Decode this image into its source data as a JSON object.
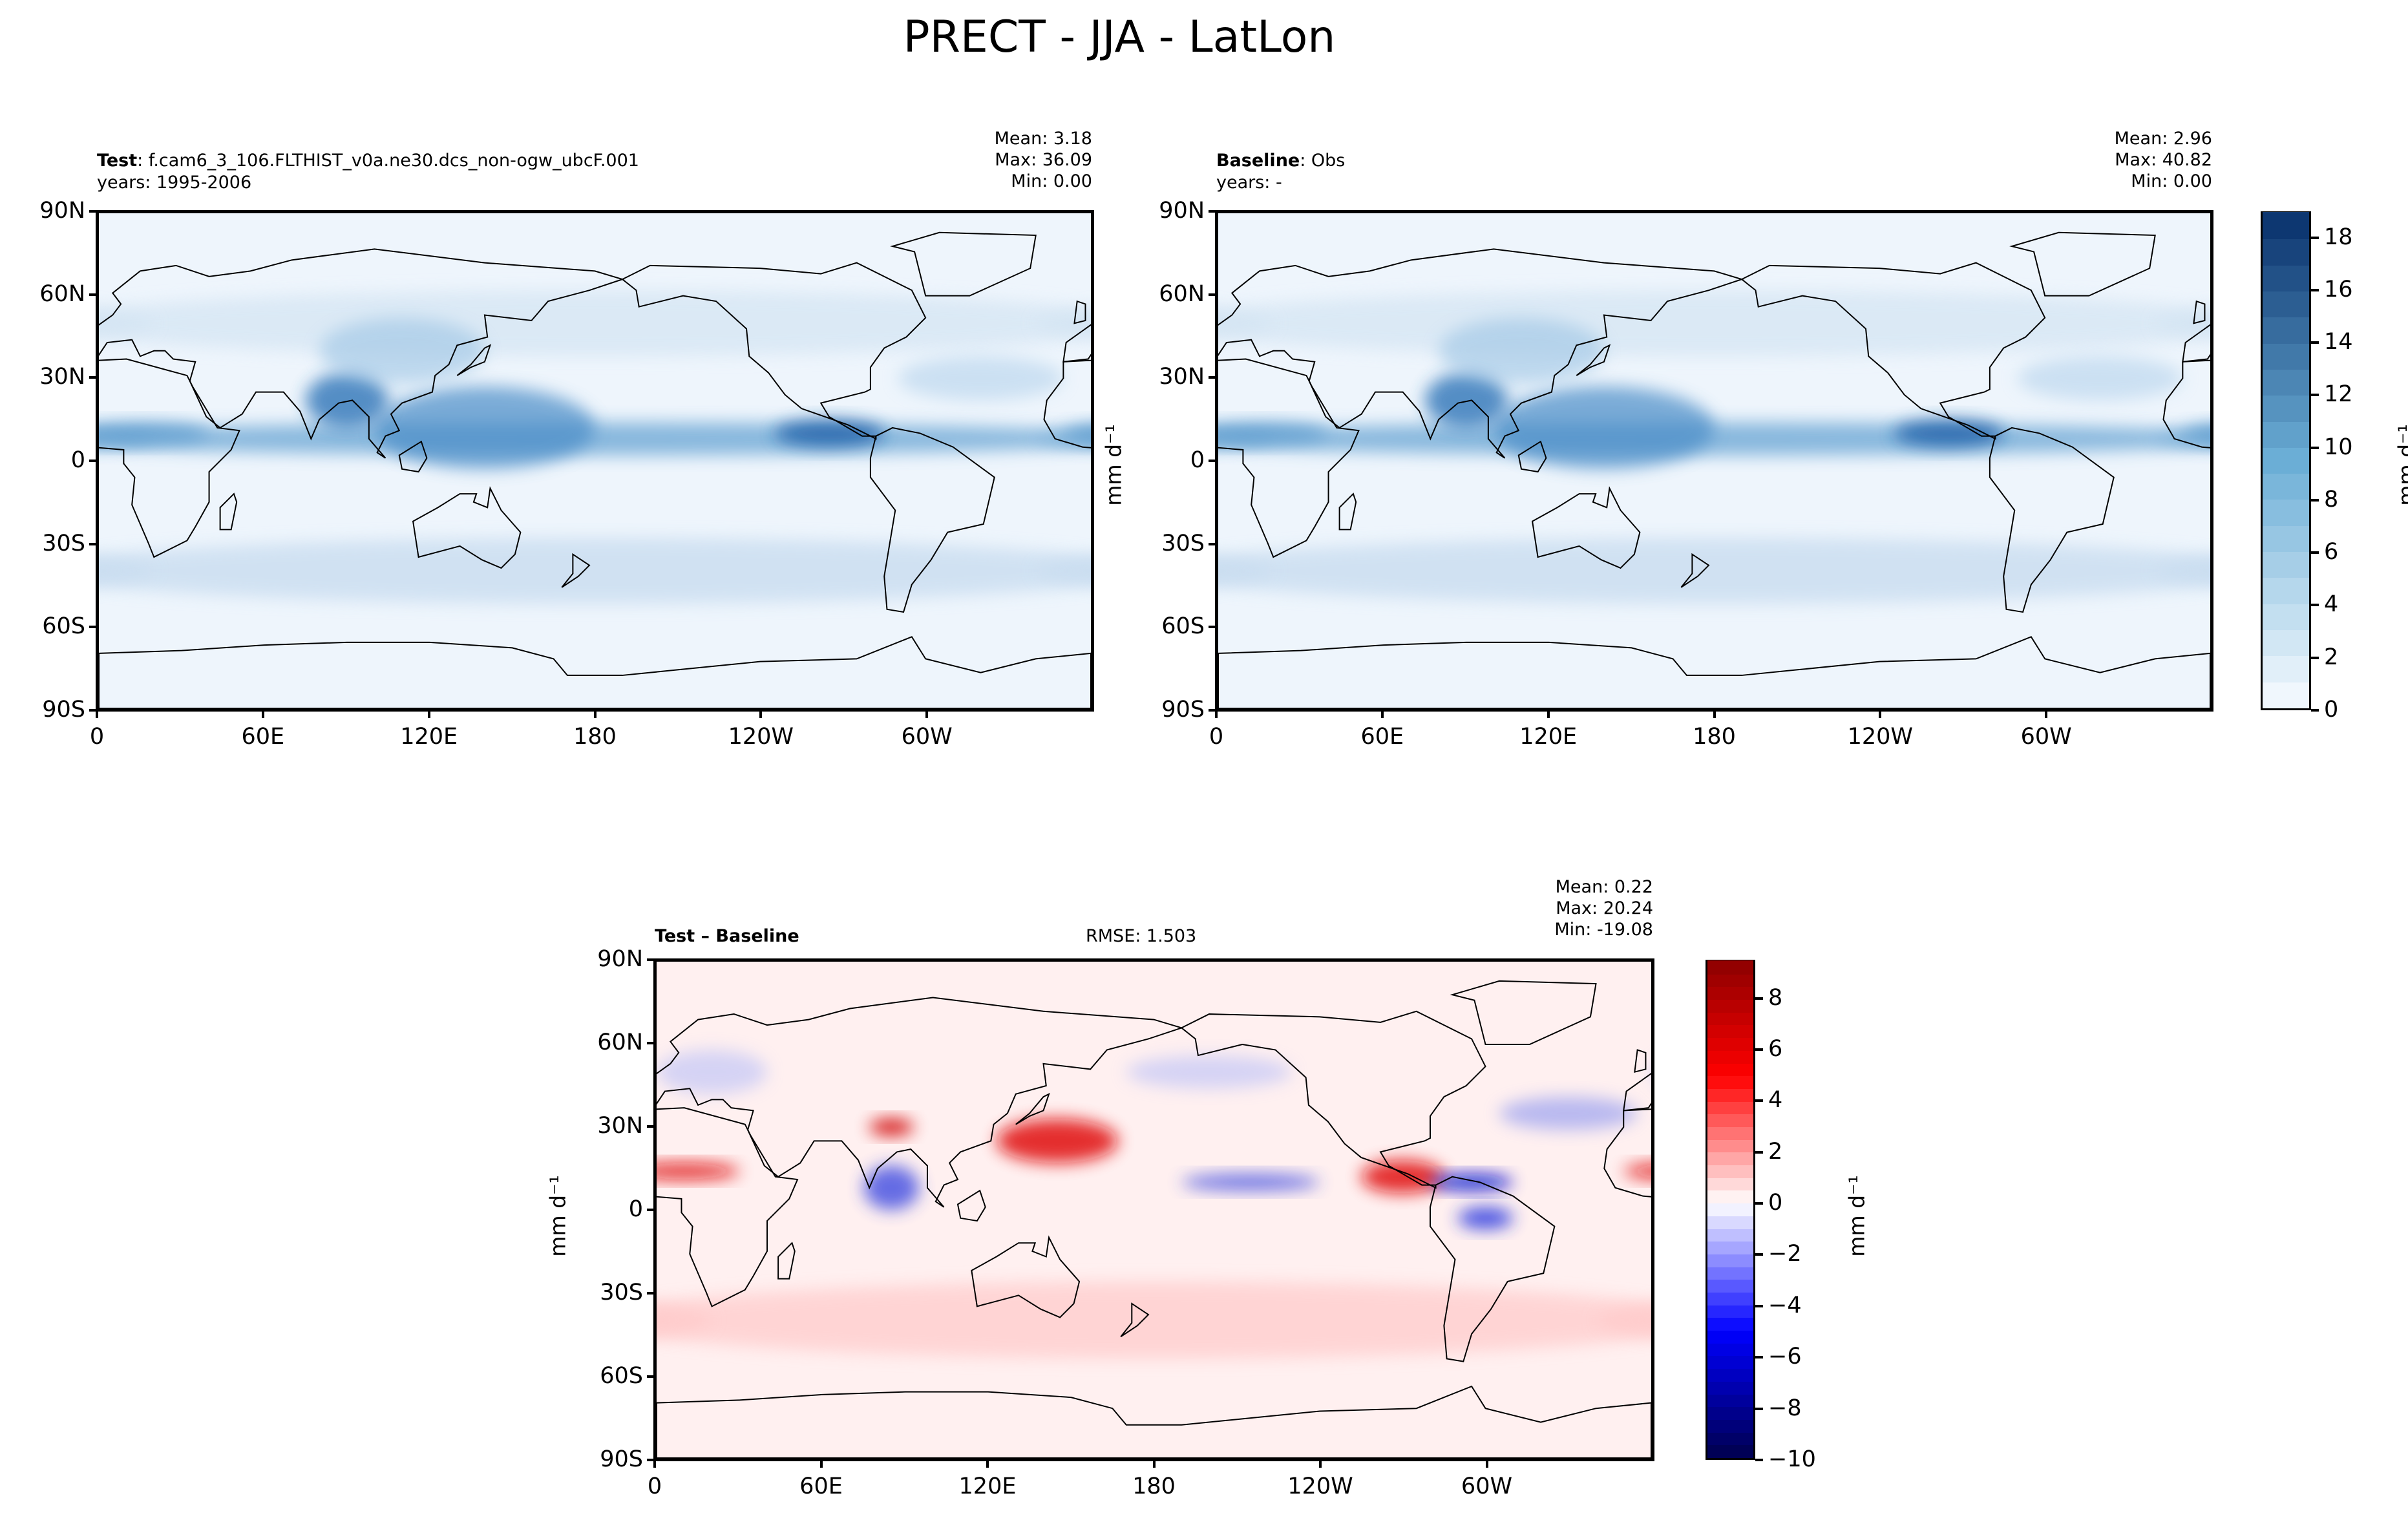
{
  "title": "PRECT - JJA - LatLon",
  "chart_data": [
    {
      "type": "heatmap",
      "panel": "test",
      "label_bold": "Test",
      "label_text": ": f.cam6_3_106.FLTHIST_v0a.ne30.dcs_non-ogw_ubcF.001",
      "years": "years: 1995-2006",
      "stats": {
        "mean": "Mean:  3.18",
        "max": "Max: 36.09",
        "min": "Min:  0.00"
      },
      "xticks": [
        "0",
        "60E",
        "120E",
        "180",
        "120W",
        "60W"
      ],
      "yticks": [
        "90N",
        "60N",
        "30N",
        "0",
        "30S",
        "60S",
        "90S"
      ],
      "ylabel": "mm d⁻¹"
    },
    {
      "type": "heatmap",
      "panel": "baseline",
      "label_bold": "Baseline",
      "label_text": ": Obs",
      "years": "years: -",
      "stats": {
        "mean": "Mean:  2.96",
        "max": "Max: 40.82",
        "min": "Min:  0.00"
      },
      "xticks": [
        "0",
        "60E",
        "120E",
        "180",
        "120W",
        "60W"
      ],
      "yticks": [
        "90N",
        "60N",
        "30N",
        "0",
        "30S",
        "60S",
        "90S"
      ],
      "colorbar": {
        "min": 0,
        "max": 19,
        "step": 1,
        "ticks": [
          "0",
          "2",
          "4",
          "6",
          "8",
          "10",
          "12",
          "14",
          "16",
          "18"
        ],
        "label": "mm d⁻¹",
        "cmap": "Blues"
      }
    },
    {
      "type": "heatmap",
      "panel": "difference",
      "label_bold": "Test – Baseline",
      "rmse": "RMSE: 1.503",
      "stats": {
        "mean": "Mean:  0.22",
        "max": "Max: 20.24",
        "min": "Min: -19.08"
      },
      "xticks": [
        "0",
        "60E",
        "120E",
        "180",
        "120W",
        "60W"
      ],
      "yticks": [
        "90N",
        "60N",
        "30N",
        "0",
        "30S",
        "60S",
        "90S"
      ],
      "ylabel": "mm d⁻¹",
      "colorbar": {
        "min": -10,
        "max": 9.5,
        "step": 0.5,
        "ticks": [
          "−10",
          "−8",
          "−6",
          "−4",
          "−2",
          "0",
          "2",
          "4",
          "6",
          "8"
        ],
        "label": "mm d⁻¹",
        "cmap": "seismic"
      }
    }
  ]
}
